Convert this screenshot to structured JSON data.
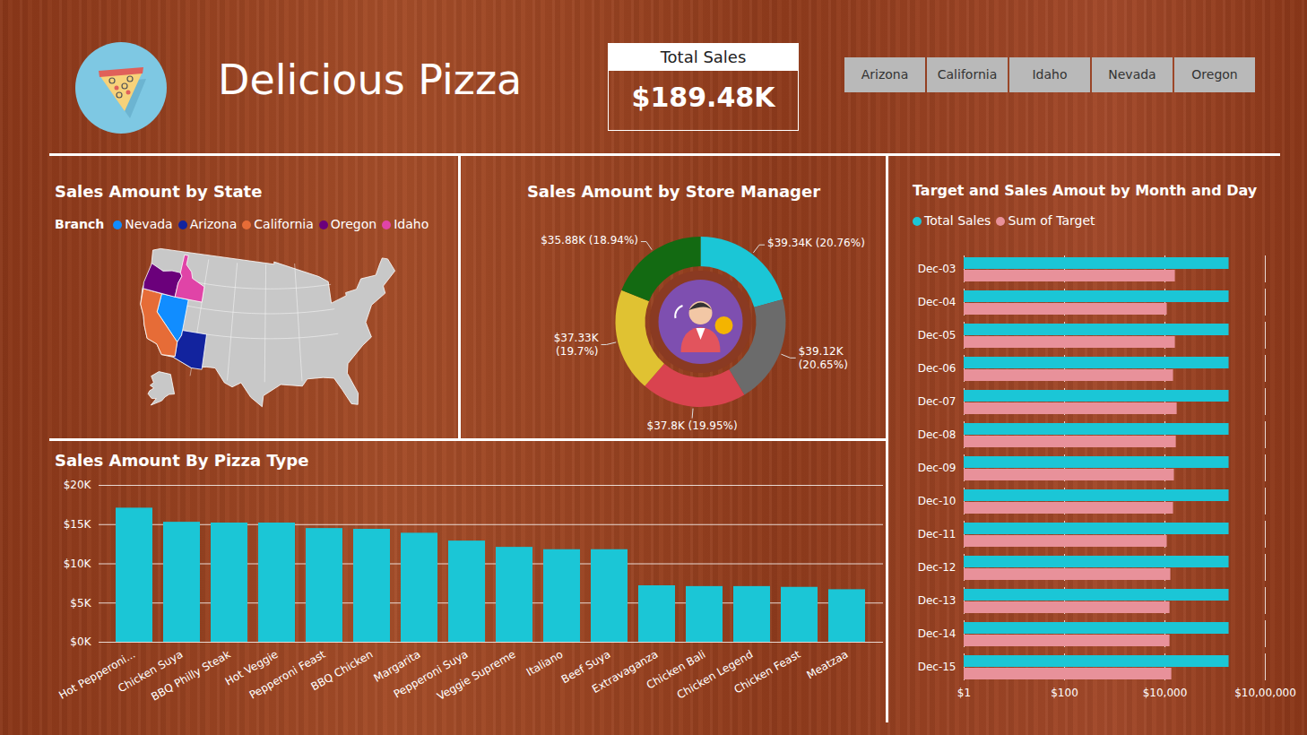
{
  "header": {
    "title": "Delicious Pizza",
    "card": {
      "title": "Total Sales",
      "value": "$189.48K"
    },
    "slicer": [
      "Arizona",
      "California",
      "Idaho",
      "Nevada",
      "Oregon"
    ]
  },
  "chart_data": [
    {
      "type": "map",
      "title": "Sales Amount by State",
      "legend_title": "Branch",
      "series": [
        {
          "name": "Nevada",
          "color": "#118DFF"
        },
        {
          "name": "Arizona",
          "color": "#12239E"
        },
        {
          "name": "California",
          "color": "#E66C37"
        },
        {
          "name": "Oregon",
          "color": "#6B007B"
        },
        {
          "name": "Idaho",
          "color": "#E044A7"
        }
      ]
    },
    {
      "type": "donut",
      "title": "Sales Amount by Store Manager",
      "values": [
        39.34,
        39.12,
        37.8,
        37.33,
        35.88
      ],
      "value_labels": [
        "$39.34K (20.76%)",
        "$39.12K (20.65%)",
        "$37.8K (19.95%)",
        "$37.33K (19.7%)",
        "$35.88K (18.94%)"
      ],
      "colors": [
        "#1BC6D6",
        "#6B6B6B",
        "#D9434F",
        "#E0C232",
        "#136A12"
      ],
      "data_labels": true
    },
    {
      "type": "bar",
      "title": "Sales Amount By Pizza Type",
      "categories": [
        "Hot Pepperoni...",
        "Chicken Suya",
        "BBQ Philly Steak",
        "Hot Veggie",
        "Pepperoni Feast",
        "BBQ Chicken",
        "Margarita",
        "Pepperoni Suya",
        "Veggie Supreme",
        "Italiano",
        "Beef Suya",
        "Extravaganza",
        "Chicken Bali",
        "Chicken Legend",
        "Chicken Feast",
        "Meatzaa"
      ],
      "values": [
        17100,
        15300,
        15200,
        15200,
        14500,
        14400,
        13900,
        12900,
        12100,
        11800,
        11800,
        7200,
        7100,
        7100,
        7000,
        6700
      ],
      "color": "#1BC6D6",
      "ylim": [
        0,
        20000
      ],
      "yticks": [
        {
          "value": 0,
          "label": "$0K"
        },
        {
          "value": 5000,
          "label": "$5K"
        },
        {
          "value": 10000,
          "label": "$10K"
        },
        {
          "value": 15000,
          "label": "$15K"
        },
        {
          "value": 20000,
          "label": "$20K"
        }
      ],
      "grid": true
    },
    {
      "type": "bar",
      "orientation": "horizontal",
      "title": "Target and Sales Amout by Month and Day",
      "categories": [
        "Dec-03",
        "Dec-04",
        "Dec-05",
        "Dec-06",
        "Dec-07",
        "Dec-08",
        "Dec-09",
        "Dec-10",
        "Dec-11",
        "Dec-12",
        "Dec-13",
        "Dec-14",
        "Dec-15"
      ],
      "series": [
        {
          "name": "Total Sales",
          "color": "#1BC6D6",
          "values": [
            189480,
            189480,
            189480,
            189480,
            189480,
            189480,
            189480,
            189480,
            189480,
            189480,
            189480,
            189480,
            189480
          ]
        },
        {
          "name": "Sum of Target",
          "color": "#E8919A",
          "values": [
            16100,
            11100,
            16100,
            14800,
            17500,
            16800,
            15400,
            14800,
            11100,
            13100,
            12600,
            12600,
            13700
          ]
        }
      ],
      "log": "x",
      "xlim": [
        1,
        1000000
      ],
      "xticks": [
        {
          "value": 1,
          "label": "$1"
        },
        {
          "value": 100,
          "label": "$100"
        },
        {
          "value": 10000,
          "label": "$10,000"
        },
        {
          "value": 1000000,
          "label": "$10,00,000"
        }
      ],
      "grid": true,
      "legend": "top"
    }
  ]
}
